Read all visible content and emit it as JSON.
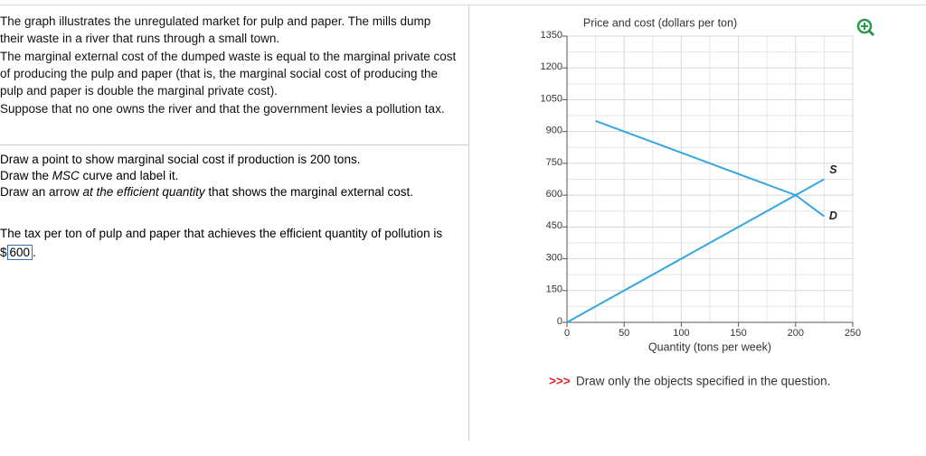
{
  "question": {
    "intro": [
      "The graph illustrates the unregulated market for pulp and paper. The mills dump their waste in a river that runs through a small town.",
      "The marginal external cost of the dumped waste is equal to the marginal private cost of producing the pulp and paper (that is, the marginal social cost of producing the pulp and paper is double the marginal private cost).",
      "Suppose that no one owns the river and that the government levies a pollution tax."
    ],
    "instructions": [
      [
        "Draw a point to show marginal social cost if production is 200 tons."
      ],
      [
        "Draw the ",
        "MSC",
        " curve and label it."
      ],
      [
        "Draw an arrow ",
        "at the efficient quantity",
        " that shows the marginal external cost."
      ]
    ],
    "tax": {
      "prefix": "The tax per ton of pulp and paper that achieves the efficient quantity of pollution is $",
      "answer": "600",
      "suffix": "."
    }
  },
  "note": {
    "marker": ">>>",
    "text": "Draw only the objects specified in the question."
  },
  "chart_data": {
    "type": "line",
    "ylabel": "Price and cost (dollars per ton)",
    "xlabel": "Quantity (tons per week)",
    "xlim": [
      0,
      250
    ],
    "ylim": [
      0,
      1350
    ],
    "xticks": [
      0,
      50,
      100,
      150,
      200,
      250
    ],
    "yticks": [
      0,
      150,
      300,
      450,
      600,
      750,
      900,
      1050,
      1200,
      1350
    ],
    "grid": true,
    "series": [
      {
        "name": "S",
        "color": "#35a6df",
        "x": [
          0,
          225
        ],
        "values": [
          0,
          675
        ]
      },
      {
        "name": "D",
        "color": "#35a6df",
        "x": [
          25,
          150,
          200,
          225
        ],
        "values": [
          950,
          700,
          600,
          500
        ]
      }
    ]
  }
}
